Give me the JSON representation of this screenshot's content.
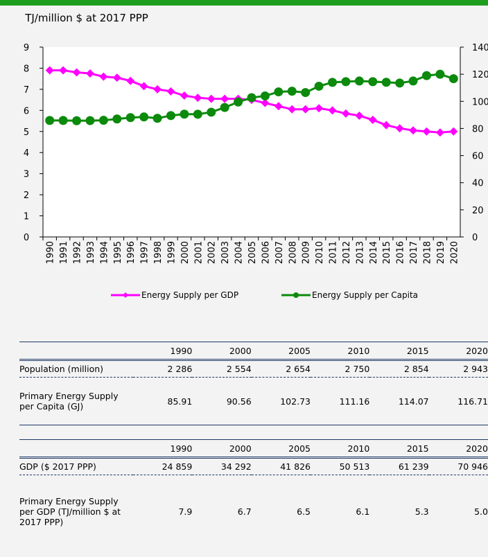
{
  "chart_data": {
    "type": "line",
    "y_label": "TJ/million $ at 2017 PPP",
    "categories": [
      "1990",
      "1991",
      "1992",
      "1993",
      "1994",
      "1995",
      "1996",
      "1997",
      "1998",
      "1999",
      "2000",
      "2001",
      "2002",
      "2003",
      "2004",
      "2005",
      "2006",
      "2007",
      "2008",
      "2009",
      "2010",
      "2011",
      "2012",
      "2013",
      "2014",
      "2015",
      "2016",
      "2017",
      "2018",
      "2019",
      "2020"
    ],
    "ylim": [
      0,
      9
    ],
    "yticks": [
      0,
      1,
      2,
      3,
      4,
      5,
      6,
      7,
      8,
      9
    ],
    "y2lim": [
      0,
      140
    ],
    "y2ticks": [
      0,
      20,
      40,
      60,
      80,
      100,
      120,
      140
    ],
    "series": [
      {
        "name": "Energy Supply per GDP",
        "color": "#ff00ff",
        "marker": "diamond",
        "values": [
          7.9,
          7.9,
          7.8,
          7.75,
          7.6,
          7.55,
          7.4,
          7.15,
          7.0,
          6.9,
          6.7,
          6.6,
          6.55,
          6.55,
          6.55,
          6.5,
          6.35,
          6.2,
          6.05,
          6.05,
          6.1,
          6.0,
          5.85,
          5.75,
          5.55,
          5.3,
          5.15,
          5.05,
          5.0,
          4.95,
          5.0
        ]
      },
      {
        "name": "Energy Supply per Capita",
        "color": "#0c8a0c",
        "marker": "circle",
        "axis": "y2",
        "values": [
          85.91,
          85.9,
          85.7,
          85.8,
          86,
          87,
          88,
          88.5,
          87.5,
          89.5,
          90.56,
          90.5,
          92,
          95.5,
          99.5,
          102.73,
          104,
          107,
          107.5,
          106.5,
          111.16,
          114,
          114.5,
          115,
          114.5,
          114.07,
          113.5,
          115,
          119,
          120,
          116.71
        ]
      }
    ]
  },
  "tables": [
    {
      "years": [
        "1990",
        "2000",
        "2005",
        "2010",
        "2015",
        "2020"
      ],
      "rows": [
        {
          "label": "Population (million)",
          "values": [
            "2 286",
            "2 554",
            "2 654",
            "2 750",
            "2 854",
            "2 943"
          ]
        },
        {
          "label": "Primary Energy Supply per Capita (GJ)",
          "values": [
            "85.91",
            "90.56",
            "102.73",
            "111.16",
            "114.07",
            "116.71"
          ]
        }
      ]
    },
    {
      "years": [
        "1990",
        "2000",
        "2005",
        "2010",
        "2015",
        "2020"
      ],
      "rows": [
        {
          "label": "GDP ($ 2017 PPP)",
          "values": [
            "24 859",
            "34 292",
            "41 826",
            "50 513",
            "61 239",
            "70 946"
          ]
        },
        {
          "label": "Primary Energy Supply per GDP (TJ/million $ at 2017 PPP)",
          "values": [
            "7.9",
            "6.7",
            "6.5",
            "6.1",
            "5.3",
            "5.0"
          ]
        }
      ]
    }
  ]
}
